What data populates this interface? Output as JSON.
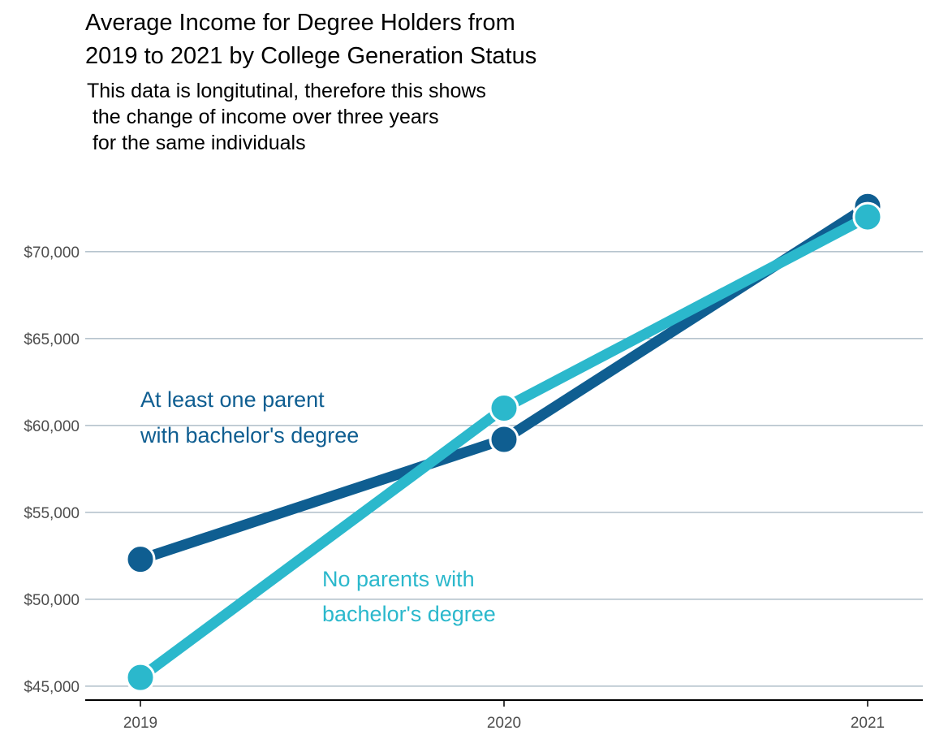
{
  "chart_data": {
    "type": "line",
    "title": [
      "Average Income for Degree Holders from",
      "2019 to 2021 by College Generation Status"
    ],
    "subtitle": [
      "This data is longitutinal, therefore this shows",
      " the change of income over three years",
      " for the same individuals"
    ],
    "xlabel": "",
    "ylabel": "",
    "x": [
      "2019",
      "2020",
      "2021"
    ],
    "ylim": [
      44200,
      73500
    ],
    "yticks": [
      45000,
      50000,
      55000,
      60000,
      65000,
      70000
    ],
    "ytick_labels": [
      "$45,000",
      "$50,000",
      "$55,000",
      "$60,000",
      "$65,000",
      "$70,000"
    ],
    "grid": "horizontal",
    "legend": "none",
    "series": [
      {
        "label_lines": [
          "At least one parent",
          "with bachelor's degree"
        ],
        "color": "#0f5e91",
        "values": [
          52300,
          59200,
          72600
        ]
      },
      {
        "label_lines": [
          "No parents with",
          "bachelor's degree"
        ],
        "color": "#2bb8cc",
        "values": [
          45500,
          61000,
          72000
        ]
      }
    ],
    "gridline_color": "#9fb0bd",
    "axis_color": "#000000"
  }
}
